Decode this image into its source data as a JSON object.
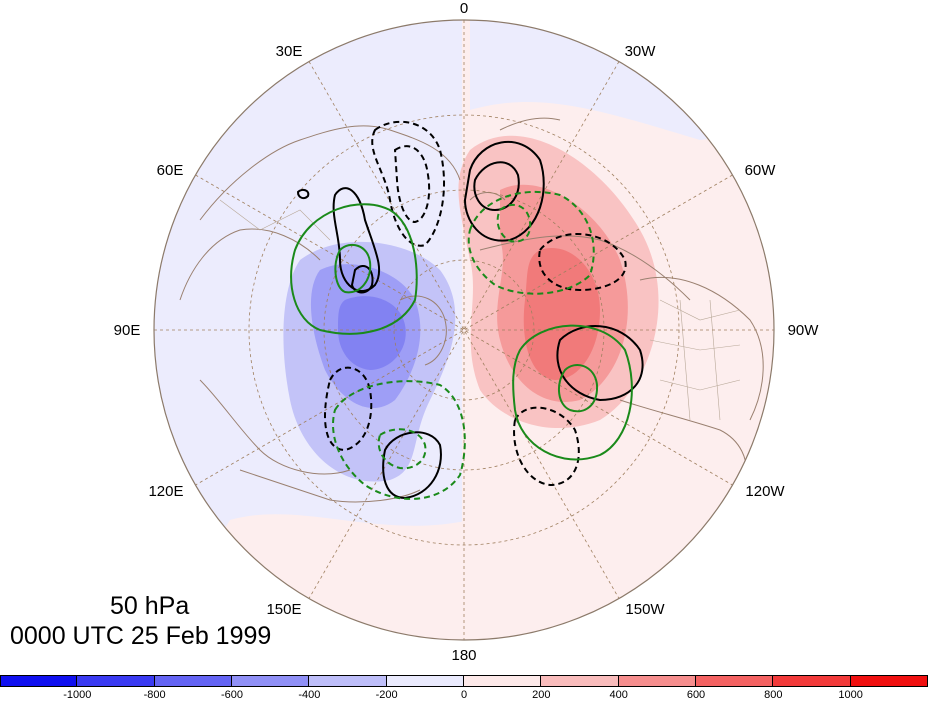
{
  "titles": {
    "level": "50 hPa",
    "time": "0000 UTC 25 Feb 1999"
  },
  "longitude_labels": {
    "lon_0": "0",
    "lon_30w": "30W",
    "lon_60w": "60W",
    "lon_90w": "90W",
    "lon_120w": "120W",
    "lon_150w": "150W",
    "lon_180": "180",
    "lon_150e": "150E",
    "lon_120e": "120E",
    "lon_90e": "90E",
    "lon_60e": "60E",
    "lon_30e": "30E"
  },
  "colorbar": {
    "colors": [
      "#1010f0",
      "#3a3af2",
      "#6464f4",
      "#9090f6",
      "#bebef9",
      "#eaeafd",
      "#fde9e9",
      "#f9bcbc",
      "#f68e8e",
      "#f46262",
      "#f23a3a",
      "#f01010"
    ],
    "tick_labels": [
      "-1000",
      "-800",
      "-600",
      "-400",
      "-200",
      "0",
      "200",
      "400",
      "600",
      "800",
      "1000"
    ]
  },
  "colors": {
    "solid_contour": "#000000",
    "dashed_contour": "#000000",
    "green_contour": "#1a8a1a",
    "coastline": "#9a8070",
    "graticule": "#a08060"
  }
}
